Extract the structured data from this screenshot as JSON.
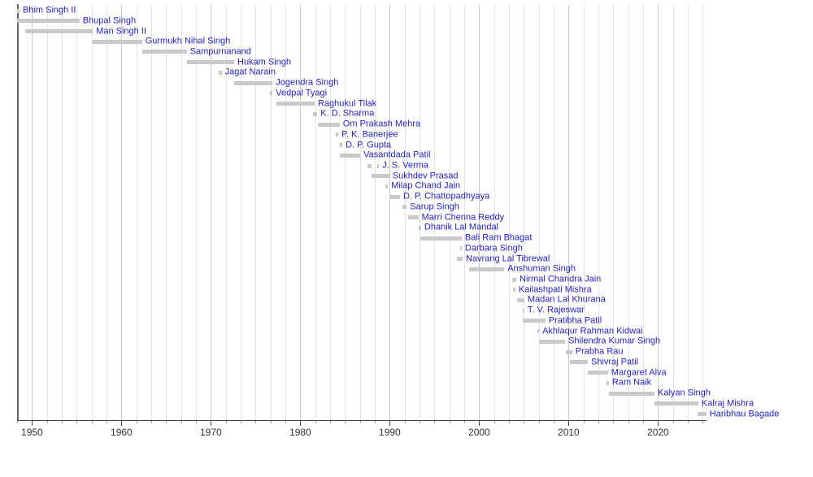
{
  "chart_data": {
    "type": "bar",
    "subtype": "timeline-gantt",
    "title": "",
    "xlabel": "",
    "ylabel": "",
    "legend": "none",
    "grid": "vertical-minor-and-major",
    "axis": {
      "range_years": [
        1948.33,
        2025.45
      ],
      "major_ticks": [
        1950,
        1960,
        1970,
        1980,
        1990,
        2000,
        2010,
        2020
      ],
      "minor_intervals_per_decade": 6
    },
    "people": [
      {
        "name": "Bhim Singh II",
        "segments": [
          [
            1948.33,
            1948.6
          ]
        ]
      },
      {
        "name": "Bhupal Singh",
        "segments": [
          [
            1948.33,
            1955.3
          ]
        ]
      },
      {
        "name": "Man Singh II",
        "segments": [
          [
            1949.2,
            1956.8
          ]
        ]
      },
      {
        "name": "Gurmukh Nihal Singh",
        "segments": [
          [
            1956.8,
            1962.3
          ]
        ]
      },
      {
        "name": "Sampurnanand",
        "segments": [
          [
            1962.3,
            1967.3
          ]
        ]
      },
      {
        "name": "Hukam Singh",
        "segments": [
          [
            1967.3,
            1972.6
          ]
        ]
      },
      {
        "name": "Jagat Narain",
        "segments": [
          [
            1970.9,
            1971.2
          ]
        ]
      },
      {
        "name": "Jogendra Singh",
        "segments": [
          [
            1972.6,
            1976.9
          ]
        ]
      },
      {
        "name": "Vedpal Tyagi",
        "segments": [
          [
            1976.6,
            1976.9
          ]
        ]
      },
      {
        "name": "Raghukul Tilak",
        "segments": [
          [
            1977.35,
            1981.6
          ]
        ]
      },
      {
        "name": "K. D. Sharma",
        "segments": [
          [
            1981.4,
            1981.9
          ]
        ]
      },
      {
        "name": "Om Prakash Mehra",
        "segments": [
          [
            1982.0,
            1984.4
          ]
        ]
      },
      {
        "name": "P. K. Banerjee",
        "segments": [
          [
            1984.0,
            1984.25
          ]
        ]
      },
      {
        "name": "D. P. Gupta",
        "segments": [
          [
            1984.4,
            1984.7
          ]
        ]
      },
      {
        "name": "Vasantdada Patil",
        "segments": [
          [
            1984.4,
            1986.7
          ]
        ]
      },
      {
        "name": "J. S. Verma",
        "segments": [
          [
            1987.5,
            1987.95
          ],
          [
            1988.6,
            1988.8
          ]
        ]
      },
      {
        "name": "Sukhdev Prasad",
        "segments": [
          [
            1987.95,
            1989.95
          ]
        ]
      },
      {
        "name": "Milap Chand Jain",
        "segments": [
          [
            1989.5,
            1989.8
          ]
        ]
      },
      {
        "name": "D. P. Chattopadhyaya",
        "segments": [
          [
            1990.05,
            1991.15
          ]
        ]
      },
      {
        "name": "Sarup Singh",
        "segments": [
          [
            1991.4,
            1991.9
          ]
        ]
      },
      {
        "name": "Marri Chenna Reddy",
        "segments": [
          [
            1992.05,
            1993.2
          ]
        ]
      },
      {
        "name": "Dhanik Lal Mandal",
        "segments": [
          [
            1993.2,
            1993.5
          ]
        ]
      },
      {
        "name": "Bali Ram Bhagat",
        "segments": [
          [
            1993.4,
            1998.05
          ]
        ]
      },
      {
        "name": "Darbara Singh",
        "segments": [
          [
            1997.85,
            1998.05
          ]
        ]
      },
      {
        "name": "Navrang Lal Tibrewal",
        "segments": [
          [
            1997.5,
            1998.15
          ]
        ]
      },
      {
        "name": "Anshuman Singh",
        "segments": [
          [
            1998.9,
            2002.8
          ]
        ]
      },
      {
        "name": "Nirmal Chandra Jain",
        "segments": [
          [
            2003.7,
            2004.15
          ]
        ]
      },
      {
        "name": "Kailashpati Mishra",
        "segments": [
          [
            2003.8,
            2004.05
          ]
        ]
      },
      {
        "name": "Madan Lal Khurana",
        "segments": [
          [
            2004.25,
            2005.05
          ]
        ]
      },
      {
        "name": "T. V. Rajeswar",
        "segments": [
          [
            2004.9,
            2005.05
          ]
        ]
      },
      {
        "name": "Pratibha Patil",
        "segments": [
          [
            2004.9,
            2007.4
          ]
        ]
      },
      {
        "name": "Akhlaqur Rahman Kidwai",
        "segments": [
          [
            2006.5,
            2006.7
          ]
        ]
      },
      {
        "name": "Shilendra Kumar Singh",
        "segments": [
          [
            2006.7,
            2009.6
          ]
        ]
      },
      {
        "name": "Prabha Rau",
        "segments": [
          [
            2009.7,
            2010.4
          ]
        ]
      },
      {
        "name": "Shivraj Patil",
        "segments": [
          [
            2010.15,
            2012.15
          ]
        ]
      },
      {
        "name": "Margaret Alva",
        "segments": [
          [
            2012.15,
            2014.4
          ]
        ]
      },
      {
        "name": "Ram Naik",
        "segments": [
          [
            2014.25,
            2014.5
          ]
        ]
      },
      {
        "name": "Kalyan Singh",
        "segments": [
          [
            2014.5,
            2019.6
          ]
        ]
      },
      {
        "name": "Kalraj Mishra",
        "segments": [
          [
            2019.6,
            2024.5
          ]
        ]
      },
      {
        "name": "Haribhau Bagade",
        "segments": [
          [
            2024.4,
            2025.4
          ]
        ]
      }
    ],
    "colors": {
      "bar": "#c9c9c9",
      "label_link_blue": "#2222cc",
      "grid_minor": "#e3e3e3",
      "grid_major": "#c9c9c9",
      "axis": "#444444",
      "year_label": "#333333"
    }
  }
}
